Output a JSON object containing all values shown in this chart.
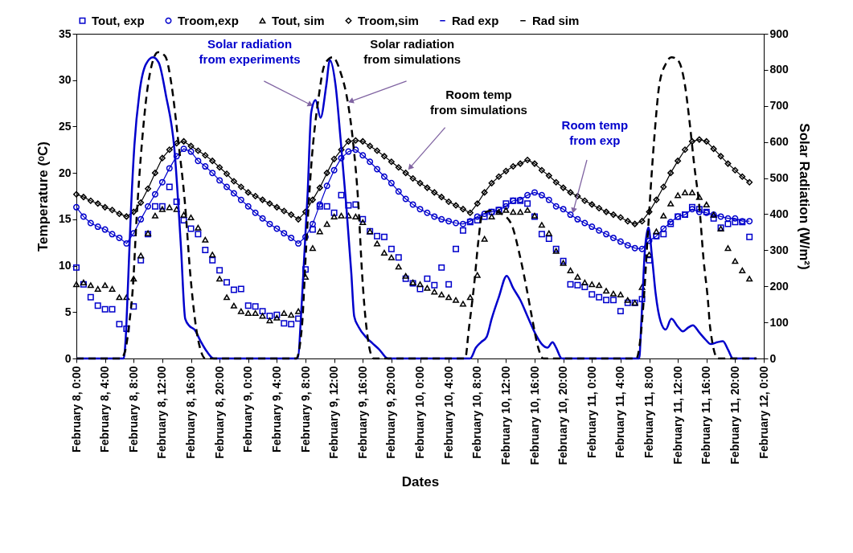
{
  "chart_data": {
    "type": "line",
    "xlabel": "Dates",
    "ylabel": "Temperature (ᵒC)",
    "y2label": "Solar Radiation (W/m²)",
    "xlim": [
      "--02-08T00:00",
      "--02-12T00:00"
    ],
    "xticks": [
      {
        "value": "--02-08T00:00",
        "label": "February 8, 0:00"
      },
      {
        "value": "--02-08T04:00",
        "label": "February 8, 4:00"
      },
      {
        "value": "--02-08T08:00",
        "label": "February 8, 8:00"
      },
      {
        "value": "--02-08T12:00",
        "label": "February 8, 12:00"
      },
      {
        "value": "--02-08T16:00",
        "label": "February 8, 16:00"
      },
      {
        "value": "--02-08T20:00",
        "label": "February 8, 20:00"
      },
      {
        "value": "--02-09T00:00",
        "label": "February 9, 0:00"
      },
      {
        "value": "--02-09T04:00",
        "label": "February 9, 4:00"
      },
      {
        "value": "--02-09T08:00",
        "label": "February 9, 8:00"
      },
      {
        "value": "--02-09T12:00",
        "label": "February 9, 12:00"
      },
      {
        "value": "--02-09T16:00",
        "label": "February 9, 16:00"
      },
      {
        "value": "--02-09T20:00",
        "label": "February 9, 20:00"
      },
      {
        "value": "--02-10T00:00",
        "label": "February 10, 0:00"
      },
      {
        "value": "--02-10T04:00",
        "label": "February 10, 4:00"
      },
      {
        "value": "--02-10T08:00",
        "label": "February 10, 8:00"
      },
      {
        "value": "--02-10T12:00",
        "label": "February 10, 12:00"
      },
      {
        "value": "--02-10T16:00",
        "label": "February 10, 16:00"
      },
      {
        "value": "--02-10T20:00",
        "label": "February 10, 20:00"
      },
      {
        "value": "--02-11T00:00",
        "label": "February 11, 0:00"
      },
      {
        "value": "--02-11T04:00",
        "label": "February 11, 4:00"
      },
      {
        "value": "--02-11T08:00",
        "label": "February 11, 8:00"
      },
      {
        "value": "--02-11T12:00",
        "label": "February 11, 12:00"
      },
      {
        "value": "--02-11T16:00",
        "label": "February 11, 16:00"
      },
      {
        "value": "--02-11T20:00",
        "label": "February 11, 20:00"
      },
      {
        "value": "--02-12T00:00",
        "label": "February 12, 0:00"
      }
    ],
    "ylim": [
      0,
      35
    ],
    "yticks": [
      0,
      5,
      10,
      15,
      20,
      25,
      30,
      35
    ],
    "y2lim": [
      0,
      900
    ],
    "y2ticks": [
      0,
      100,
      200,
      300,
      400,
      500,
      600,
      700,
      800,
      900
    ],
    "legend": "top",
    "x": [
      "--02-08T00:00",
      "--02-08T01:00",
      "--02-08T02:00",
      "--02-08T03:00",
      "--02-08T04:00",
      "--02-08T05:00",
      "--02-08T06:00",
      "--02-08T07:00",
      "--02-08T08:00",
      "--02-08T09:00",
      "--02-08T10:00",
      "--02-08T11:00",
      "--02-08T12:00",
      "--02-08T13:00",
      "--02-08T14:00",
      "--02-08T15:00",
      "--02-08T16:00",
      "--02-08T17:00",
      "--02-08T18:00",
      "--02-08T19:00",
      "--02-08T20:00",
      "--02-08T21:00",
      "--02-08T22:00",
      "--02-08T23:00",
      "--02-09T00:00",
      "--02-09T01:00",
      "--02-09T02:00",
      "--02-09T03:00",
      "--02-09T04:00",
      "--02-09T05:00",
      "--02-09T06:00",
      "--02-09T07:00",
      "--02-09T08:00",
      "--02-09T09:00",
      "--02-09T10:00",
      "--02-09T11:00",
      "--02-09T12:00",
      "--02-09T13:00",
      "--02-09T14:00",
      "--02-09T15:00",
      "--02-09T16:00",
      "--02-09T17:00",
      "--02-09T18:00",
      "--02-09T19:00",
      "--02-09T20:00",
      "--02-09T21:00",
      "--02-09T22:00",
      "--02-09T23:00",
      "--02-10T00:00",
      "--02-10T01:00",
      "--02-10T02:00",
      "--02-10T03:00",
      "--02-10T04:00",
      "--02-10T05:00",
      "--02-10T06:00",
      "--02-10T07:00",
      "--02-10T08:00",
      "--02-10T09:00",
      "--02-10T10:00",
      "--02-10T11:00",
      "--02-10T12:00",
      "--02-10T13:00",
      "--02-10T14:00",
      "--02-10T15:00",
      "--02-10T16:00",
      "--02-10T17:00",
      "--02-10T18:00",
      "--02-10T19:00",
      "--02-10T20:00",
      "--02-10T21:00",
      "--02-10T22:00",
      "--02-10T23:00",
      "--02-11T00:00",
      "--02-11T01:00",
      "--02-11T02:00",
      "--02-11T03:00",
      "--02-11T04:00",
      "--02-11T05:00",
      "--02-11T06:00",
      "--02-11T07:00",
      "--02-11T08:00",
      "--02-11T09:00",
      "--02-11T10:00",
      "--02-11T11:00",
      "--02-11T12:00",
      "--02-11T13:00",
      "--02-11T14:00",
      "--02-11T15:00",
      "--02-11T16:00",
      "--02-11T17:00",
      "--02-11T18:00",
      "--02-11T19:00",
      "--02-11T20:00",
      "--02-11T21:00",
      "--02-11T22:00"
    ],
    "series": [
      {
        "name": "Tout, exp",
        "type": "scatter",
        "marker": "square",
        "color": "#0000cc",
        "values": [
          9.8,
          8.0,
          6.6,
          5.7,
          5.3,
          5.3,
          3.7,
          3.2,
          5.6,
          10.6,
          13.4,
          16.4,
          16.4,
          18.5,
          16.9,
          14.9,
          14.0,
          13.4,
          11.7,
          10.6,
          9.5,
          8.2,
          7.4,
          7.5,
          5.7,
          5.6,
          5.1,
          4.6,
          4.7,
          3.8,
          3.7,
          4.3,
          9.6,
          13.9,
          16.4,
          16.4,
          15.7,
          17.6,
          16.5,
          16.6,
          15.0,
          13.7,
          13.2,
          13.1,
          11.8,
          10.9,
          8.6,
          8.1,
          7.5,
          8.6,
          7.9,
          9.8,
          8.0,
          11.8,
          13.8,
          14.7,
          14.9,
          15.3,
          15.8,
          16.0,
          16.7,
          17.0,
          17.0,
          16.7,
          15.3,
          13.4,
          12.9,
          11.8,
          10.5,
          8.0,
          7.9,
          7.7,
          6.9,
          6.6,
          6.3,
          6.3,
          5.1,
          6.0,
          6.0,
          6.4,
          10.6,
          13.2,
          13.4,
          14.5,
          15.3,
          15.5,
          16.3,
          16.1,
          15.8,
          15.1,
          14.1,
          14.5,
          14.7,
          14.7,
          13.1
        ]
      },
      {
        "name": "Troom,exp",
        "marker": "circle",
        "color": "#0000cc",
        "values": [
          16.3,
          15.3,
          14.6,
          14.2,
          13.9,
          13.4,
          13.0,
          12.4,
          13.5,
          15.0,
          16.4,
          17.7,
          19.0,
          20.5,
          21.8,
          22.6,
          22.3,
          21.3,
          20.7,
          20.0,
          19.2,
          18.5,
          17.8,
          17.1,
          16.4,
          15.7,
          15.1,
          14.5,
          14.0,
          13.5,
          13.0,
          12.4,
          13.1,
          14.5,
          16.6,
          18.6,
          20.3,
          21.6,
          22.3,
          22.5,
          21.9,
          21.2,
          20.4,
          19.6,
          18.9,
          18.0,
          17.2,
          16.6,
          16.1,
          15.7,
          15.3,
          15.0,
          14.8,
          14.6,
          14.5,
          14.8,
          15.3,
          15.6,
          15.8,
          16.0,
          16.4,
          17.0,
          17.1,
          17.6,
          17.9,
          17.6,
          17.1,
          16.4,
          16.1,
          15.5,
          15.0,
          14.6,
          14.2,
          13.8,
          13.4,
          13.0,
          12.6,
          12.2,
          11.9,
          11.8,
          12.7,
          13.2,
          14.0,
          14.7,
          15.3,
          15.5,
          16.1,
          15.8,
          15.7,
          15.5,
          15.3,
          15.1,
          15.1,
          14.8,
          14.8
        ]
      },
      {
        "name": "Tout, sim",
        "type": "scatter",
        "marker": "triangle",
        "color": "#000000",
        "values": [
          8.0,
          8.2,
          7.9,
          7.5,
          7.9,
          7.5,
          6.6,
          6.6,
          8.6,
          11.1,
          13.5,
          15.4,
          16.1,
          16.3,
          16.1,
          15.5,
          15.2,
          14.1,
          12.8,
          11.2,
          8.6,
          6.6,
          5.7,
          5.1,
          4.9,
          4.9,
          4.6,
          4.1,
          4.4,
          4.9,
          4.7,
          5.1,
          8.8,
          11.9,
          13.7,
          14.5,
          15.3,
          15.4,
          15.4,
          15.3,
          14.7,
          13.7,
          12.4,
          11.4,
          10.9,
          9.9,
          8.9,
          8.2,
          8.0,
          7.6,
          7.2,
          6.9,
          6.6,
          6.3,
          5.9,
          6.6,
          9.0,
          12.9,
          15.3,
          15.8,
          16.0,
          15.8,
          15.8,
          16.0,
          15.4,
          14.4,
          13.5,
          11.6,
          10.3,
          9.5,
          8.8,
          8.2,
          8.0,
          7.9,
          7.3,
          7.0,
          6.9,
          6.3,
          6.0,
          7.7,
          11.2,
          13.7,
          15.4,
          16.7,
          17.6,
          17.9,
          17.9,
          17.4,
          16.6,
          15.5,
          14.0,
          11.9,
          10.5,
          9.5,
          8.6
        ]
      },
      {
        "name": "Troom,sim",
        "marker": "diamond",
        "color": "#000000",
        "values": [
          17.7,
          17.4,
          17.0,
          16.7,
          16.3,
          16.0,
          15.6,
          15.3,
          15.8,
          16.8,
          18.3,
          20.0,
          21.6,
          22.5,
          23.2,
          23.4,
          22.9,
          22.4,
          21.9,
          21.3,
          20.6,
          19.9,
          19.1,
          18.5,
          17.9,
          17.5,
          17.1,
          16.7,
          16.3,
          15.9,
          15.5,
          15.0,
          15.8,
          17.1,
          18.4,
          20.0,
          21.5,
          22.5,
          23.4,
          23.5,
          23.4,
          22.9,
          22.4,
          21.8,
          21.2,
          20.6,
          20.0,
          19.4,
          18.9,
          18.4,
          17.9,
          17.4,
          16.9,
          16.5,
          16.1,
          15.7,
          16.7,
          17.9,
          18.9,
          19.6,
          20.2,
          20.7,
          21.0,
          21.4,
          21.0,
          20.3,
          19.7,
          19.0,
          18.4,
          17.9,
          17.5,
          17.0,
          16.6,
          16.2,
          15.8,
          15.5,
          15.2,
          14.8,
          14.5,
          14.8,
          15.8,
          17.1,
          18.5,
          20.0,
          21.3,
          22.5,
          23.4,
          23.6,
          23.4,
          22.6,
          21.8,
          21.0,
          20.3,
          19.6,
          19.0
        ]
      },
      {
        "name": "Rad exp",
        "marker": "none",
        "line_style": "solid",
        "axis": "y2",
        "color": "#0000cc",
        "x": [
          "--02-08T00:00",
          "--02-08T06:36",
          "--02-08T06:54",
          "--02-08T07:12",
          "--02-08T07:36",
          "--02-08T08:06",
          "--02-08T08:48",
          "--02-08T09:42",
          "--02-08T10:42",
          "--02-08T11:30",
          "--02-08T12:30",
          "--02-08T13:42",
          "--02-08T14:36",
          "--02-08T15:12",
          "--02-08T15:48",
          "--02-08T16:30",
          "--02-08T17:18",
          "--02-08T18:12",
          "--02-08T19:12",
          "--02-09T06:54",
          "--02-09T07:30",
          "--02-09T08:18",
          "--02-09T08:48",
          "--02-09T09:24",
          "--02-09T10:06",
          "--02-09T10:54",
          "--02-09T11:24",
          "--02-09T12:12",
          "--02-09T12:54",
          "--02-09T13:42",
          "--02-09T14:24",
          "--02-09T14:48",
          "--02-09T15:24",
          "--02-09T16:30",
          "--02-09T17:18",
          "--02-09T18:18",
          "--02-09T19:30",
          "--02-10T07:00",
          "--02-10T07:48",
          "--02-10T08:30",
          "--02-10T09:18",
          "--02-10T10:00",
          "--02-10T11:00",
          "--02-10T12:06",
          "--02-10T13:00",
          "--02-10T14:00",
          "--02-10T15:00",
          "--02-10T16:12",
          "--02-10T17:00",
          "--02-10T17:48",
          "--02-10T18:30",
          "--02-10T19:00",
          "--02-10T19:48",
          "--02-11T06:36",
          "--02-11T06:54",
          "--02-11T07:24",
          "--02-11T07:54",
          "--02-11T08:24",
          "--02-11T08:54",
          "--02-11T09:36",
          "--02-11T10:18",
          "--02-11T11:06",
          "--02-11T12:00",
          "--02-11T12:42",
          "--02-11T13:24",
          "--02-11T14:06",
          "--02-11T15:00",
          "--02-11T15:48",
          "--02-11T16:36",
          "--02-11T17:30",
          "--02-11T18:18",
          "--02-11T19:00",
          "--02-11T19:42",
          "--02-11T23:00"
        ],
        "values": [
          0,
          0,
          60,
          200,
          400,
          590,
          735,
          815,
          835,
          820,
          730,
          578,
          311,
          110,
          90,
          80,
          50,
          20,
          0,
          0,
          162,
          459,
          682,
          716,
          667,
          757,
          827,
          757,
          608,
          422,
          236,
          117,
          88,
          58,
          43,
          25,
          0,
          0,
          30,
          45,
          60,
          110,
          170,
          229,
          195,
          162,
          117,
          65,
          40,
          30,
          45,
          30,
          0,
          0,
          100,
          300,
          363,
          280,
          180,
          102,
          80,
          110,
          88,
          75,
          85,
          92,
          72,
          54,
          40,
          45,
          48,
          25,
          0,
          0
        ]
      },
      {
        "name": "Rad sim",
        "marker": "none",
        "line_style": "dashed",
        "axis": "y2",
        "color": "#000000",
        "x": [
          "--02-08T00:00",
          "--02-08T06:12",
          "--02-08T06:48",
          "--02-08T07:24",
          "--02-08T07:54",
          "--02-08T08:24",
          "--02-08T09:12",
          "--02-08T10:06",
          "--02-08T11:24",
          "--02-08T12:24",
          "--02-08T13:18",
          "--02-08T14:12",
          "--02-08T15:12",
          "--02-08T15:54",
          "--02-08T16:42",
          "--02-08T17:24",
          "--02-08T18:00",
          "--02-09T06:42",
          "--02-09T07:30",
          "--02-09T08:06",
          "--02-09T08:48",
          "--02-09T09:48",
          "--02-09T10:42",
          "--02-09T11:48",
          "--02-09T12:54",
          "--02-09T13:54",
          "--02-09T14:36",
          "--02-09T15:24",
          "--02-09T15:54",
          "--02-09T16:30",
          "--02-09T17:30",
          "--02-10T06:18",
          "--02-10T06:48",
          "--02-10T07:36",
          "--02-10T08:06",
          "--02-10T08:42",
          "--02-10T10:00",
          "--02-10T11:30",
          "--02-10T12:48",
          "--02-10T13:54",
          "--02-10T14:54",
          "--02-10T15:36",
          "--02-10T16:30",
          "--02-10T17:12",
          "--02-11T06:12",
          "--02-11T06:48",
          "--02-11T07:18",
          "--02-11T07:42",
          "--02-11T08:42",
          "--02-11T09:24",
          "--02-11T10:18",
          "--02-11T11:06",
          "--02-11T12:00",
          "--02-11T13:00",
          "--02-11T13:42",
          "--02-11T14:18",
          "--02-11T15:00",
          "--02-11T15:36",
          "--02-11T16:12",
          "--02-11T16:30",
          "--02-11T17:36",
          "--02-11T23:00"
        ],
        "values": [
          0,
          0,
          20,
          100,
          200,
          385,
          608,
          771,
          849,
          838,
          757,
          608,
          422,
          236,
          88,
          20,
          0,
          0,
          88,
          311,
          534,
          719,
          816,
          835,
          793,
          711,
          608,
          422,
          236,
          88,
          0,
          0,
          80,
          214,
          318,
          400,
          410,
          400,
          370,
          288,
          192,
          117,
          30,
          0,
          0,
          60,
          180,
          311,
          608,
          757,
          816,
          835,
          827,
          757,
          645,
          534,
          422,
          273,
          162,
          88,
          0,
          0
        ]
      }
    ],
    "annotations": [
      {
        "text": "Solar radiation\nfrom experiments",
        "x": "--02-09T09:06",
        "y": 27.2
      },
      {
        "text": "Solar radiation\nfrom simulations",
        "x": "--02-09T13:54",
        "y": 27.6
      },
      {
        "text": "Room temp\nfrom simulations",
        "x": "--02-09T22:18",
        "y": 20.3
      },
      {
        "text": "Room temp\nfrom exp",
        "x": "--02-10T21:18",
        "y": 15.6
      }
    ]
  }
}
